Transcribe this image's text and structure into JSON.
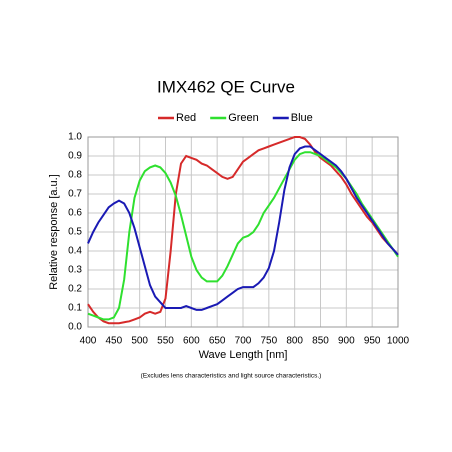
{
  "chart_data": {
    "type": "line",
    "title": "IMX462  QE Curve",
    "x_label": "Wave Length [nm]",
    "y_label": "Relative response [a.u.]",
    "footnote": "(Excludes lens characteristics and light source characteristics.)",
    "x": [
      400,
      410,
      420,
      430,
      440,
      450,
      460,
      470,
      480,
      490,
      500,
      510,
      520,
      530,
      540,
      550,
      560,
      570,
      580,
      590,
      600,
      610,
      620,
      630,
      640,
      650,
      660,
      670,
      680,
      690,
      700,
      710,
      720,
      730,
      740,
      750,
      760,
      770,
      780,
      790,
      800,
      810,
      820,
      830,
      840,
      850,
      860,
      870,
      880,
      890,
      900,
      910,
      920,
      930,
      940,
      950,
      960,
      970,
      980,
      990,
      1000
    ],
    "series": [
      {
        "name": "Red",
        "color": "#d62a2a",
        "values": [
          0.12,
          0.08,
          0.05,
          0.03,
          0.02,
          0.02,
          0.02,
          0.025,
          0.03,
          0.04,
          0.05,
          0.07,
          0.08,
          0.07,
          0.08,
          0.15,
          0.4,
          0.7,
          0.86,
          0.9,
          0.89,
          0.88,
          0.86,
          0.85,
          0.83,
          0.81,
          0.79,
          0.78,
          0.79,
          0.83,
          0.87,
          0.89,
          0.91,
          0.93,
          0.94,
          0.95,
          0.96,
          0.97,
          0.98,
          0.99,
          1.0,
          1.0,
          0.99,
          0.96,
          0.92,
          0.89,
          0.87,
          0.85,
          0.82,
          0.79,
          0.75,
          0.7,
          0.66,
          0.62,
          0.58,
          0.55,
          0.51,
          0.47,
          0.44,
          0.41,
          0.38
        ]
      },
      {
        "name": "Green",
        "color": "#2fe02f",
        "values": [
          0.07,
          0.06,
          0.05,
          0.04,
          0.04,
          0.05,
          0.1,
          0.25,
          0.5,
          0.68,
          0.77,
          0.82,
          0.84,
          0.85,
          0.84,
          0.81,
          0.76,
          0.69,
          0.59,
          0.48,
          0.37,
          0.3,
          0.26,
          0.24,
          0.24,
          0.24,
          0.27,
          0.32,
          0.38,
          0.44,
          0.47,
          0.48,
          0.5,
          0.54,
          0.6,
          0.64,
          0.68,
          0.73,
          0.78,
          0.83,
          0.88,
          0.91,
          0.92,
          0.92,
          0.91,
          0.9,
          0.88,
          0.86,
          0.84,
          0.81,
          0.78,
          0.74,
          0.7,
          0.65,
          0.61,
          0.57,
          0.53,
          0.49,
          0.45,
          0.41,
          0.37
        ]
      },
      {
        "name": "Blue",
        "color": "#1a1ab4",
        "values": [
          0.44,
          0.5,
          0.55,
          0.59,
          0.63,
          0.65,
          0.665,
          0.65,
          0.6,
          0.52,
          0.42,
          0.32,
          0.22,
          0.16,
          0.13,
          0.1,
          0.1,
          0.1,
          0.1,
          0.11,
          0.1,
          0.09,
          0.09,
          0.1,
          0.11,
          0.12,
          0.14,
          0.16,
          0.18,
          0.2,
          0.21,
          0.21,
          0.21,
          0.23,
          0.26,
          0.31,
          0.4,
          0.55,
          0.72,
          0.84,
          0.91,
          0.94,
          0.95,
          0.95,
          0.93,
          0.91,
          0.89,
          0.87,
          0.85,
          0.82,
          0.78,
          0.73,
          0.68,
          0.64,
          0.6,
          0.56,
          0.52,
          0.48,
          0.44,
          0.41,
          0.38
        ]
      }
    ],
    "xlim": [
      400,
      1000
    ],
    "xticks": [
      400,
      450,
      500,
      550,
      600,
      650,
      700,
      750,
      800,
      850,
      900,
      950,
      1000
    ],
    "ylim": [
      0,
      1
    ],
    "yticks": [
      {
        "value": 0,
        "label": "0.0"
      },
      0.1,
      0.2,
      0.3,
      0.4,
      0.5,
      0.6,
      0.7,
      0.8,
      0.9,
      {
        "value": 1,
        "label": "1.0"
      }
    ],
    "grid": true,
    "legend": "top"
  }
}
